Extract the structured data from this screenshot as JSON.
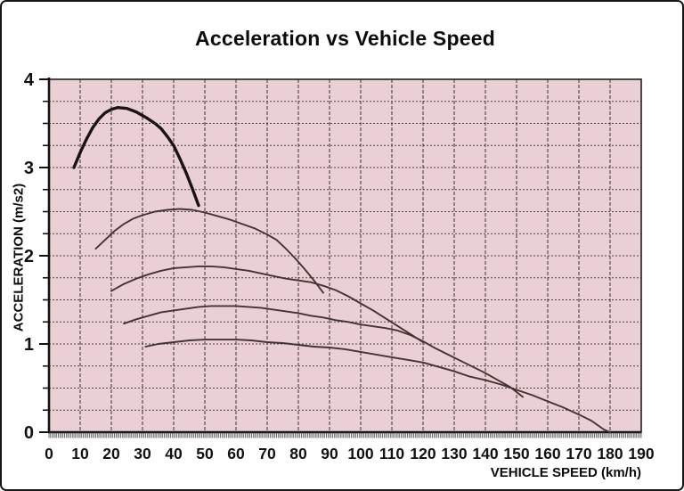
{
  "window": {
    "title": "Acceleration vs Vehicle Speed"
  },
  "chart_data": {
    "type": "line",
    "title": "Acceleration vs Vehicle Speed",
    "xlabel": "VEHICLE SPEED (km/h)",
    "ylabel": "ACCELERATION (m/s2)",
    "xlim": [
      0,
      190
    ],
    "ylim": [
      0,
      4
    ],
    "x_ticks": [
      0,
      10,
      20,
      30,
      40,
      50,
      60,
      70,
      80,
      90,
      100,
      110,
      120,
      130,
      140,
      150,
      160,
      170,
      180,
      190
    ],
    "y_ticks": [
      0,
      1,
      2,
      3,
      4
    ],
    "x_grid_step": 10,
    "y_grid_step": 0.25,
    "grid": true,
    "legend_position": "none",
    "colors": {
      "plot_background": "#ead0d4",
      "grid": "#4a4444",
      "axis": "#111111",
      "curve": "#443333",
      "curve_bold": "#1b1313"
    },
    "series": [
      {
        "name": "series_1",
        "points": [
          [
            8,
            3.0
          ],
          [
            10,
            3.17
          ],
          [
            12,
            3.32
          ],
          [
            14,
            3.45
          ],
          [
            16,
            3.55
          ],
          [
            18,
            3.62
          ],
          [
            20,
            3.66
          ],
          [
            22,
            3.68
          ],
          [
            25,
            3.67
          ],
          [
            28,
            3.63
          ],
          [
            31,
            3.57
          ],
          [
            34,
            3.5
          ],
          [
            36,
            3.44
          ],
          [
            38,
            3.35
          ],
          [
            40,
            3.25
          ],
          [
            42,
            3.1
          ],
          [
            44,
            2.94
          ],
          [
            46,
            2.76
          ],
          [
            48,
            2.57
          ]
        ]
      },
      {
        "name": "series_2",
        "points": [
          [
            15,
            2.08
          ],
          [
            18,
            2.18
          ],
          [
            21,
            2.28
          ],
          [
            24,
            2.36
          ],
          [
            27,
            2.42
          ],
          [
            30,
            2.46
          ],
          [
            34,
            2.5
          ],
          [
            38,
            2.52
          ],
          [
            42,
            2.53
          ],
          [
            46,
            2.52
          ],
          [
            50,
            2.49
          ],
          [
            54,
            2.45
          ],
          [
            58,
            2.41
          ],
          [
            62,
            2.36
          ],
          [
            66,
            2.31
          ],
          [
            70,
            2.24
          ],
          [
            73,
            2.18
          ],
          [
            76,
            2.08
          ],
          [
            79,
            1.97
          ],
          [
            82,
            1.85
          ],
          [
            85,
            1.72
          ],
          [
            88,
            1.58
          ]
        ]
      },
      {
        "name": "series_3",
        "points": [
          [
            20,
            1.6
          ],
          [
            24,
            1.68
          ],
          [
            28,
            1.74
          ],
          [
            32,
            1.79
          ],
          [
            36,
            1.83
          ],
          [
            40,
            1.86
          ],
          [
            44,
            1.87
          ],
          [
            48,
            1.88
          ],
          [
            52,
            1.88
          ],
          [
            56,
            1.87
          ],
          [
            60,
            1.85
          ],
          [
            64,
            1.83
          ],
          [
            68,
            1.8
          ],
          [
            72,
            1.77
          ],
          [
            76,
            1.74
          ],
          [
            80,
            1.72
          ],
          [
            84,
            1.7
          ],
          [
            88,
            1.66
          ],
          [
            92,
            1.61
          ],
          [
            96,
            1.54
          ],
          [
            100,
            1.46
          ],
          [
            104,
            1.38
          ],
          [
            108,
            1.29
          ],
          [
            112,
            1.2
          ],
          [
            116,
            1.11
          ],
          [
            120,
            1.02
          ]
        ]
      },
      {
        "name": "series_4",
        "points": [
          [
            24,
            1.23
          ],
          [
            28,
            1.28
          ],
          [
            32,
            1.32
          ],
          [
            36,
            1.36
          ],
          [
            40,
            1.38
          ],
          [
            44,
            1.4
          ],
          [
            48,
            1.42
          ],
          [
            52,
            1.43
          ],
          [
            56,
            1.43
          ],
          [
            60,
            1.43
          ],
          [
            64,
            1.42
          ],
          [
            68,
            1.41
          ],
          [
            72,
            1.39
          ],
          [
            76,
            1.37
          ],
          [
            80,
            1.35
          ],
          [
            84,
            1.32
          ],
          [
            88,
            1.3
          ],
          [
            92,
            1.27
          ],
          [
            96,
            1.25
          ],
          [
            100,
            1.22
          ],
          [
            104,
            1.2
          ],
          [
            108,
            1.18
          ],
          [
            112,
            1.15
          ],
          [
            116,
            1.1
          ],
          [
            120,
            1.03
          ],
          [
            124,
            0.95
          ],
          [
            128,
            0.88
          ],
          [
            132,
            0.81
          ],
          [
            136,
            0.74
          ],
          [
            140,
            0.67
          ],
          [
            144,
            0.59
          ],
          [
            148,
            0.51
          ],
          [
            152,
            0.4
          ]
        ]
      },
      {
        "name": "series_5",
        "points": [
          [
            31,
            0.97
          ],
          [
            35,
            1.0
          ],
          [
            40,
            1.02
          ],
          [
            45,
            1.04
          ],
          [
            50,
            1.05
          ],
          [
            55,
            1.05
          ],
          [
            60,
            1.05
          ],
          [
            65,
            1.04
          ],
          [
            70,
            1.02
          ],
          [
            75,
            1.01
          ],
          [
            80,
            0.99
          ],
          [
            85,
            0.97
          ],
          [
            90,
            0.96
          ],
          [
            95,
            0.94
          ],
          [
            100,
            0.91
          ],
          [
            105,
            0.88
          ],
          [
            110,
            0.85
          ],
          [
            115,
            0.82
          ],
          [
            120,
            0.79
          ],
          [
            125,
            0.74
          ],
          [
            130,
            0.69
          ],
          [
            135,
            0.63
          ],
          [
            140,
            0.59
          ],
          [
            145,
            0.54
          ],
          [
            150,
            0.48
          ],
          [
            155,
            0.42
          ],
          [
            160,
            0.35
          ],
          [
            165,
            0.28
          ],
          [
            170,
            0.2
          ],
          [
            174,
            0.13
          ],
          [
            178,
            0.03
          ],
          [
            180,
            0.0
          ]
        ]
      }
    ]
  }
}
